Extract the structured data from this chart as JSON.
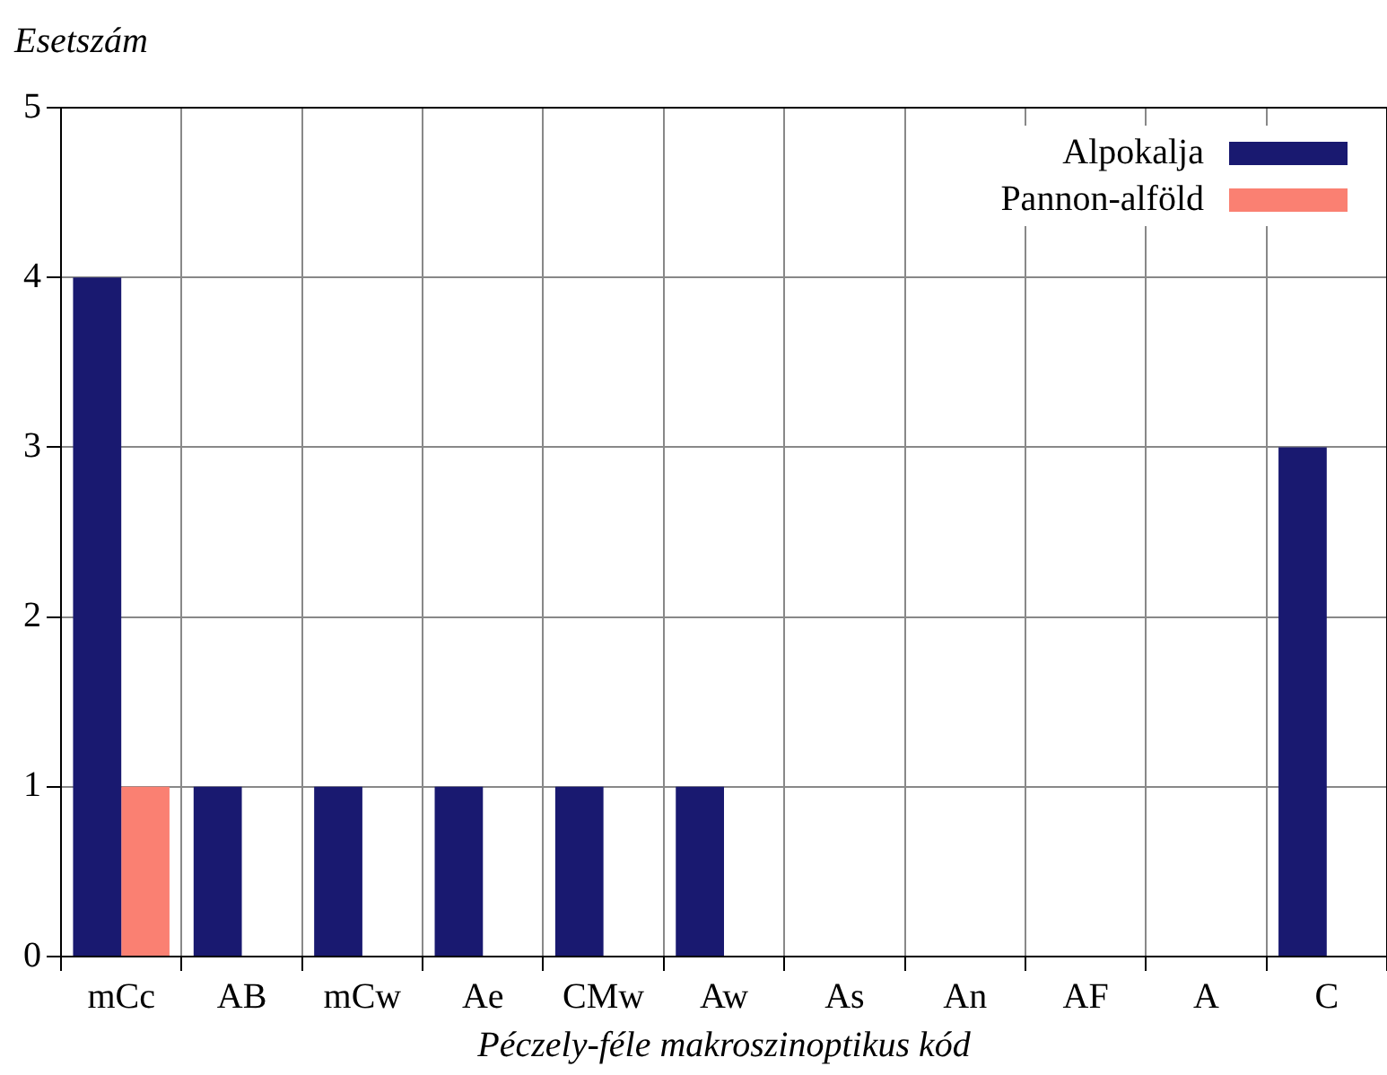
{
  "chart_data": {
    "type": "bar",
    "xlabel": "Péczely-féle makroszinoptikus kód",
    "ylabel": "Esetszám",
    "categories": [
      "mCc",
      "AB",
      "mCw",
      "Ae",
      "CMw",
      "Aw",
      "As",
      "An",
      "AF",
      "A",
      "C"
    ],
    "series": [
      {
        "name": "Alpokalja",
        "color": "#191970",
        "values": [
          4,
          1,
          1,
          1,
          1,
          1,
          0,
          0,
          0,
          0,
          3
        ]
      },
      {
        "name": "Pannon-alföld",
        "color": "#fa8072",
        "values": [
          1,
          0,
          0,
          0,
          0,
          0,
          0,
          0,
          0,
          0,
          0
        ]
      }
    ],
    "ylim": [
      0,
      5
    ],
    "yticks": [
      0,
      1,
      2,
      3,
      4,
      5
    ],
    "grid": true,
    "legend": "top right"
  }
}
